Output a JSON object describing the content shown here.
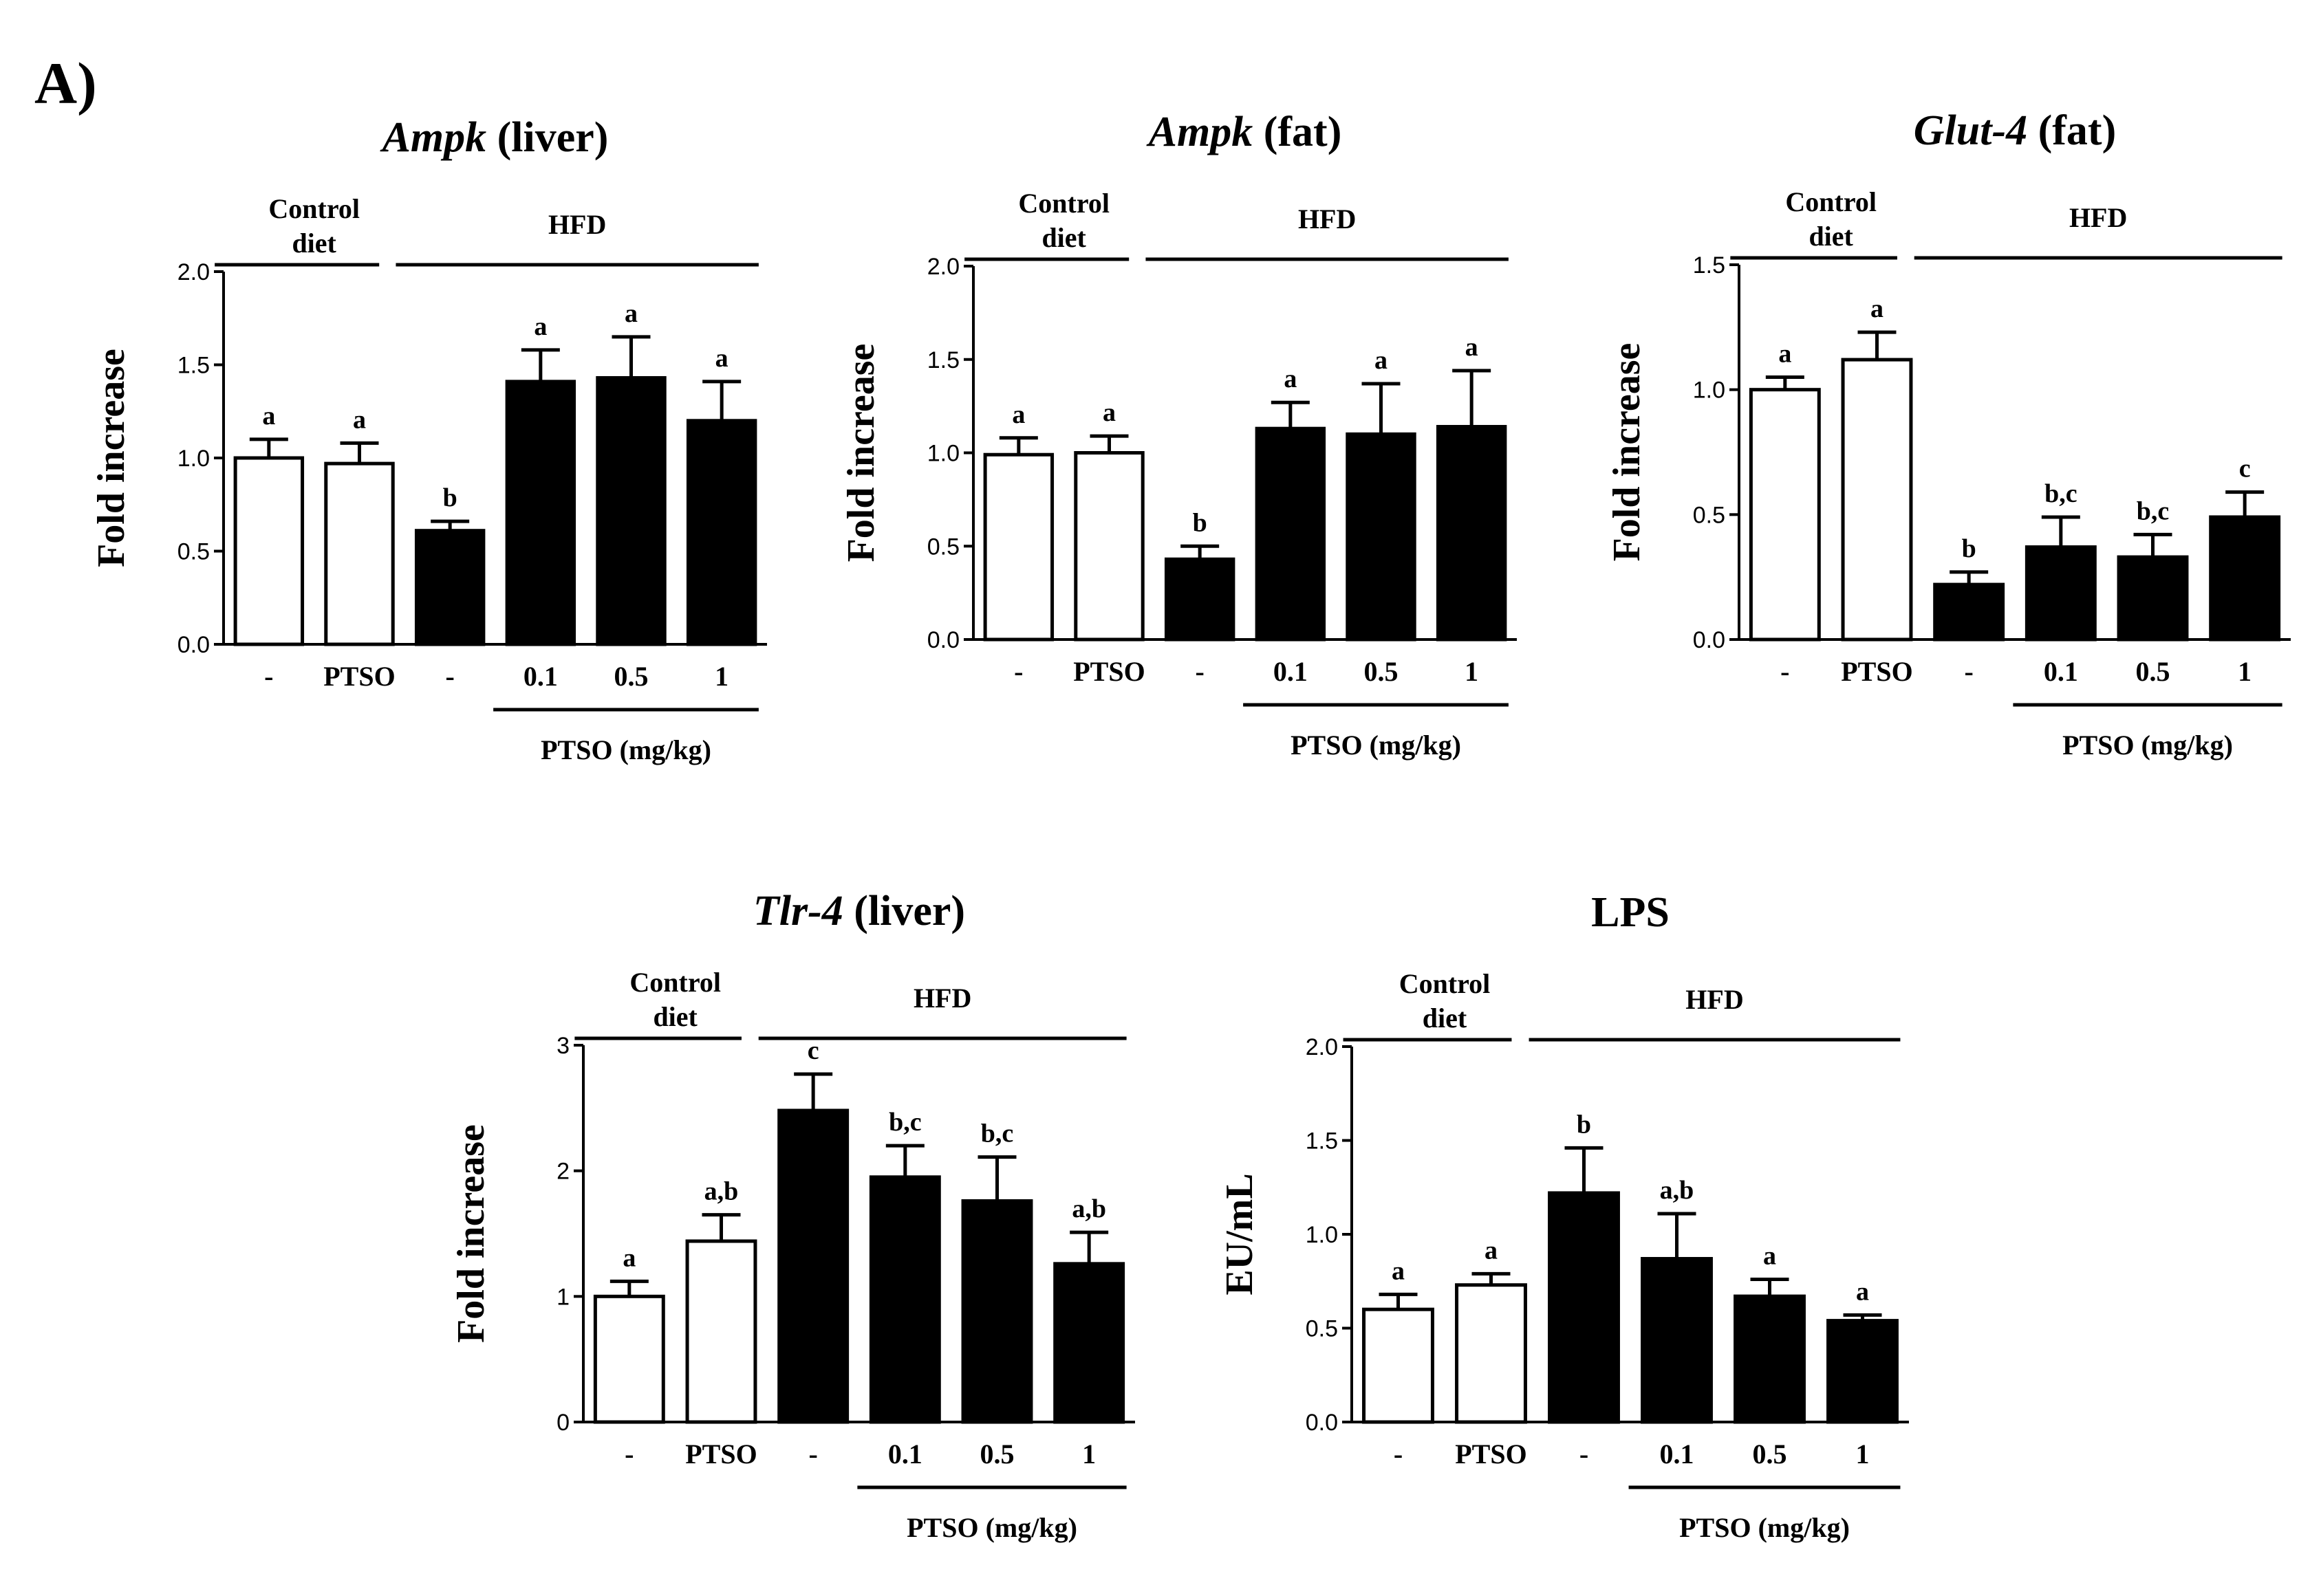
{
  "figure": {
    "panel_label": "A)",
    "fill_colors": {
      "control": "#ffffff",
      "hfd": "#000000"
    }
  },
  "chart_data": [
    {
      "type": "bar",
      "title_italic": "Ampk",
      "title_rest": " (liver)",
      "ylabel": "Fold increase",
      "ylim": [
        0,
        2.0
      ],
      "yticks": [
        "0.0",
        "0.5",
        "1.0",
        "1.5",
        "2.0"
      ],
      "categories": [
        "-",
        "PTSO",
        "-",
        "0.1",
        "0.5",
        "1"
      ],
      "groups": [
        "control",
        "control",
        "hfd",
        "hfd",
        "hfd",
        "hfd"
      ],
      "values": [
        1.0,
        0.97,
        0.61,
        1.41,
        1.43,
        1.2
      ],
      "errors": [
        0.1,
        0.11,
        0.05,
        0.17,
        0.22,
        0.21
      ],
      "significance": [
        "a",
        "a",
        "b",
        "a",
        "a",
        "a"
      ],
      "control_label": [
        "Control",
        "diet"
      ],
      "hfd_label": "HFD",
      "dose_label": "PTSO (mg/kg)"
    },
    {
      "type": "bar",
      "title_italic": "Ampk",
      "title_rest": " (fat)",
      "ylabel": "Fold increase",
      "ylim": [
        0,
        2.0
      ],
      "yticks": [
        "0.0",
        "0.5",
        "1.0",
        "1.5",
        "2.0"
      ],
      "categories": [
        "-",
        "PTSO",
        "-",
        "0.1",
        "0.5",
        "1"
      ],
      "groups": [
        "control",
        "control",
        "hfd",
        "hfd",
        "hfd",
        "hfd"
      ],
      "values": [
        0.99,
        1.0,
        0.43,
        1.13,
        1.1,
        1.14
      ],
      "errors": [
        0.09,
        0.09,
        0.07,
        0.14,
        0.27,
        0.3
      ],
      "significance": [
        "a",
        "a",
        "b",
        "a",
        "a",
        "a"
      ],
      "control_label": [
        "Control",
        "diet"
      ],
      "hfd_label": "HFD",
      "dose_label": "PTSO (mg/kg)"
    },
    {
      "type": "bar",
      "title_italic": "Glut-4",
      "title_rest": " (fat)",
      "ylabel": "Fold increase",
      "ylim": [
        0,
        1.5
      ],
      "yticks": [
        "0.0",
        "0.5",
        "1.0",
        "1.5"
      ],
      "categories": [
        "-",
        "PTSO",
        "-",
        "0.1",
        "0.5",
        "1"
      ],
      "groups": [
        "control",
        "control",
        "hfd",
        "hfd",
        "hfd",
        "hfd"
      ],
      "values": [
        1.0,
        1.12,
        0.22,
        0.37,
        0.33,
        0.49
      ],
      "errors": [
        0.05,
        0.11,
        0.05,
        0.12,
        0.09,
        0.1
      ],
      "significance": [
        "a",
        "a",
        "b",
        "b,c",
        "b,c",
        "c"
      ],
      "control_label": [
        "Control",
        "diet"
      ],
      "hfd_label": "HFD",
      "dose_label": "PTSO (mg/kg)"
    },
    {
      "type": "bar",
      "title_italic": "Tlr-4",
      "title_rest": " (liver)",
      "ylabel": "Fold increase",
      "ylim": [
        0,
        3
      ],
      "yticks": [
        "0",
        "1",
        "2",
        "3"
      ],
      "categories": [
        "-",
        "PTSO",
        "-",
        "0.1",
        "0.5",
        "1"
      ],
      "groups": [
        "control",
        "control",
        "hfd",
        "hfd",
        "hfd",
        "hfd"
      ],
      "values": [
        1.0,
        1.44,
        2.48,
        1.95,
        1.76,
        1.26
      ],
      "errors": [
        0.12,
        0.21,
        0.29,
        0.25,
        0.35,
        0.25
      ],
      "significance": [
        "a",
        "a,b",
        "c",
        "b,c",
        "b,c",
        "a,b"
      ],
      "control_label": [
        "Control",
        "diet"
      ],
      "hfd_label": "HFD",
      "dose_label": "PTSO (mg/kg)"
    },
    {
      "type": "bar",
      "title_italic": "",
      "title_rest": "LPS",
      "ylabel": "EU/mL",
      "ylim": [
        0,
        2.0
      ],
      "yticks": [
        "0.0",
        "0.5",
        "1.0",
        "1.5",
        "2.0"
      ],
      "categories": [
        "-",
        "PTSO",
        "-",
        "0.1",
        "0.5",
        "1"
      ],
      "groups": [
        "control",
        "control",
        "hfd",
        "hfd",
        "hfd",
        "hfd"
      ],
      "values": [
        0.6,
        0.73,
        1.22,
        0.87,
        0.67,
        0.54
      ],
      "errors": [
        0.08,
        0.06,
        0.24,
        0.24,
        0.09,
        0.03
      ],
      "significance": [
        "a",
        "a",
        "b",
        "a,b",
        "a",
        "a"
      ],
      "control_label": [
        "Control",
        "diet"
      ],
      "hfd_label": "HFD",
      "dose_label": "PTSO (mg/kg)"
    }
  ]
}
